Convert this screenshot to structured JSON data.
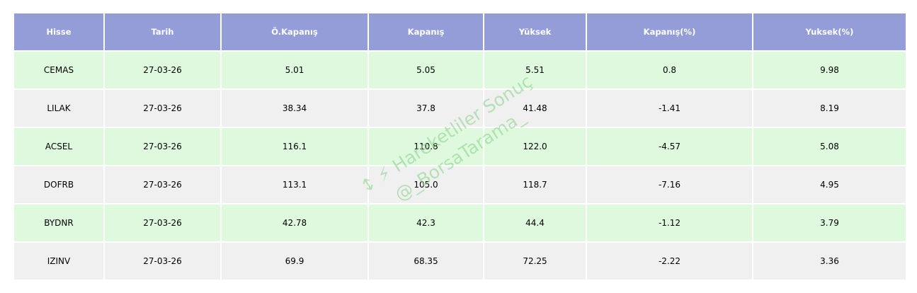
{
  "chart_data": {
    "type": "table",
    "columns": [
      "Hisse",
      "Tarih",
      "Ö.Kapanış",
      "Kapanış",
      "Yüksek",
      "Kapanış(%)",
      "Yuksek(%)"
    ],
    "rows": [
      [
        "CEMAS",
        "27-03-26",
        "5.01",
        "5.05",
        "5.51",
        "0.8",
        "9.98"
      ],
      [
        "LILAK",
        "27-03-26",
        "38.34",
        "37.8",
        "41.48",
        "-1.41",
        "8.19"
      ],
      [
        "ACSEL",
        "27-03-26",
        "116.1",
        "110.8",
        "122.0",
        "-4.57",
        "5.08"
      ],
      [
        "DOFRB",
        "27-03-26",
        "113.1",
        "105.0",
        "118.7",
        "-7.16",
        "4.95"
      ],
      [
        "BYDNR",
        "27-03-26",
        "42.78",
        "42.3",
        "44.4",
        "-1.12",
        "3.79"
      ],
      [
        "IZINV",
        "27-03-26",
        "69.9",
        "68.35",
        "72.25",
        "-2.22",
        "3.36"
      ]
    ],
    "colors": {
      "header_bg": "#949dd8",
      "header_text": "#ffffff",
      "row_alt_1": "#dff9df",
      "row_alt_2": "#f0f0f0",
      "watermark": "#8fd48f"
    }
  },
  "watermark": {
    "line1": "↕ ⚡ Hareketliler Sonuç",
    "line2": "@_BorsaTarama_"
  }
}
